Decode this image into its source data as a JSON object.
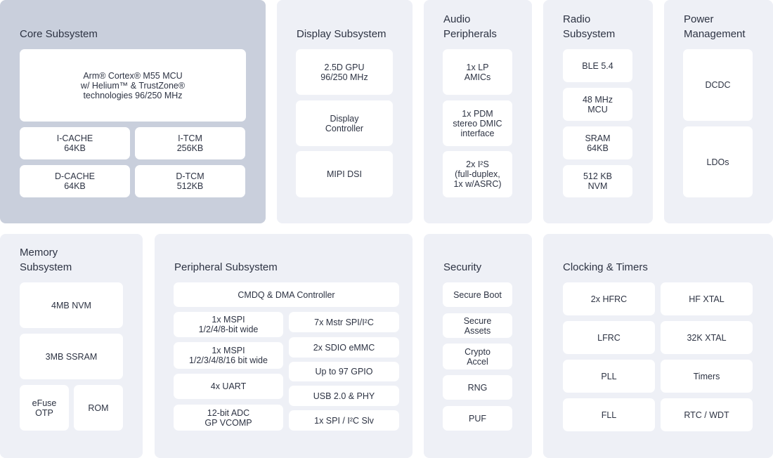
{
  "colors": {
    "panel": "#eef0f6",
    "core_panel": "#c9cfdc",
    "block": "#ffffff",
    "text": "#2d3343"
  },
  "panels": {
    "core": {
      "title": "Core Subsystem",
      "blocks": [
        "Arm® Cortex® M55 MCU\nw/ Helium™ & TrustZone®\ntechnologies 96/250 MHz",
        "I-CACHE\n64KB",
        "I-TCM\n256KB",
        "D-CACHE\n64KB",
        "D-TCM\n512KB"
      ]
    },
    "display": {
      "title": "Display Subsystem",
      "blocks": [
        "2.5D GPU\n96/250 MHz",
        "Display\nController",
        "MIPI DSI"
      ]
    },
    "audio": {
      "title": "Audio\nPeripherals",
      "blocks": [
        "1x LP\nAMICs",
        "1x PDM\nstereo DMIC\ninterface",
        "2x I²S\n(full-duplex,\n1x w/ASRC)"
      ]
    },
    "radio": {
      "title": "Radio\nSubsystem",
      "blocks": [
        "BLE 5.4",
        "48 MHz\nMCU",
        "SRAM\n64KB",
        "512 KB\nNVM"
      ]
    },
    "power": {
      "title": "Power\nManagement",
      "blocks": [
        "DCDC",
        "LDOs"
      ]
    },
    "memory": {
      "title": "Memory\nSubsystem",
      "blocks": [
        "4MB NVM",
        "3MB SSRAM",
        "eFuse\nOTP",
        "ROM"
      ]
    },
    "peripheral": {
      "title": "Peripheral Subsystem",
      "blocks": [
        "CMDQ & DMA Controller",
        "1x MSPI\n1/2/4/8-bit wide",
        "1x MSPI\n1/2/3/4/8/16 bit wide",
        "4x UART",
        "12-bit ADC\nGP VCOMP",
        "7x Mstr SPI/I²C",
        "2x SDIO eMMC",
        "Up to 97 GPIO",
        "USB 2.0 & PHY",
        "1x SPI / I²C Slv"
      ]
    },
    "security": {
      "title": "Security",
      "blocks": [
        "Secure Boot",
        "Secure\nAssets",
        "Crypto\nAccel",
        "RNG",
        "PUF"
      ]
    },
    "clocking": {
      "title": "Clocking & Timers",
      "blocks": [
        "2x HFRC",
        "HF XTAL",
        "LFRC",
        "32K XTAL",
        "PLL",
        "Timers",
        "FLL",
        "RTC / WDT"
      ]
    }
  }
}
